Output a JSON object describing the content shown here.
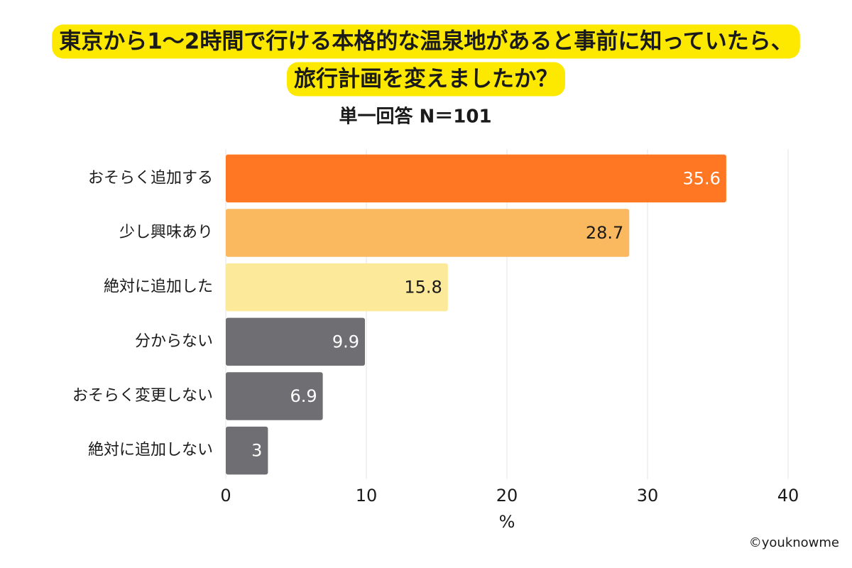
{
  "chart_data": {
    "type": "bar",
    "orientation": "horizontal",
    "title_lines": [
      "東京から1～2時間で行ける本格的な温泉地があると事前に知っていたら、",
      "旅行計画を変えましたか？"
    ],
    "subtitle": "単一回答 N＝101",
    "categories": [
      "おそらく追加する",
      "少し興味あり",
      "絶対に追加した",
      "分からない",
      "おそらく変更しない",
      "絶対に追加しない"
    ],
    "values": [
      35.6,
      28.7,
      15.8,
      9.9,
      6.9,
      3
    ],
    "colors": [
      "#ff7722",
      "#fbb95f",
      "#fde99a",
      "#6f6e72",
      "#6f6e72",
      "#6f6e72"
    ],
    "xlim": [
      0,
      40
    ],
    "xticks": [
      0,
      10,
      20,
      30,
      40
    ],
    "xlabel": "%",
    "grid": true,
    "credit": "©youknowme"
  }
}
